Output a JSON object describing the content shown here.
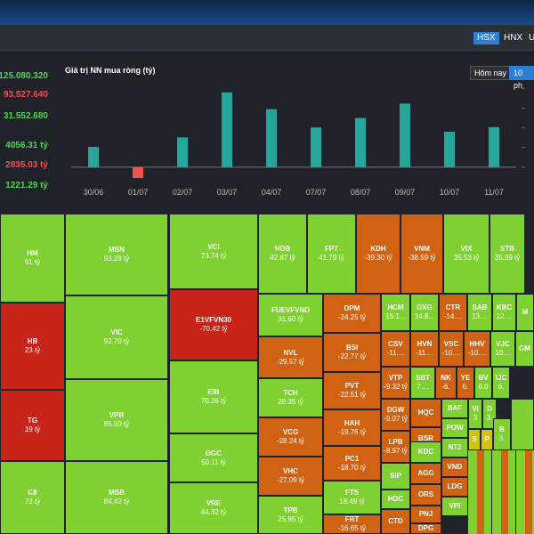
{
  "exchanges": {
    "hsx": "HSX",
    "hnx": "HNX",
    "upcom": "U"
  },
  "left_values": [
    {
      "text": "125.080.320",
      "color": "#4ed64e"
    },
    {
      "text": "93.527.640",
      "color": "#ff4747"
    },
    {
      "text": "31.552.680",
      "color": "#4ed64e"
    },
    {
      "text": "4056.31 tỷ",
      "color": "#4ed64e"
    },
    {
      "text": "2835.03 tỷ",
      "color": "#ff4747"
    },
    {
      "text": "1221.29 tỷ",
      "color": "#4ed64e"
    }
  ],
  "chart_title": "Giá trị NN mua ròng (tỷ)",
  "buttons": {
    "today": "Hôm nay",
    "tenmin": "10 ph"
  },
  "chart_data": {
    "type": "bar",
    "categories": [
      "30/06",
      "01/07",
      "02/07",
      "03/07",
      "04/07",
      "07/07",
      "08/07",
      "09/07",
      "10/07",
      "11/07"
    ],
    "values": [
      620,
      -330,
      910,
      2280,
      1770,
      1210,
      1500,
      1940,
      1080,
      1220
    ],
    "ylim": [
      -600,
      2600
    ],
    "colors": {
      "positive": "#26a69a",
      "negative": "#ef5350"
    }
  },
  "heatmap": [
    {
      "t": "HM",
      "v": "91 tỷ",
      "c": "g"
    },
    {
      "t": "MSN",
      "v": "93.28 tỷ",
      "c": "g"
    },
    {
      "t": "VCI",
      "v": "73.74 tỷ",
      "c": "g"
    },
    {
      "t": "HDB",
      "v": "42.87 tỷ",
      "c": "g"
    },
    {
      "t": "FPT",
      "v": "41.79 tỷ",
      "c": "g"
    },
    {
      "t": "KDH",
      "v": "-39.30 tỷ",
      "c": "o"
    },
    {
      "t": "VNM",
      "v": "-38.59 tỷ",
      "c": "o"
    },
    {
      "t": "VIX",
      "v": "35.53 tỷ",
      "c": "g"
    },
    {
      "t": "STB",
      "v": "35.09 tỷ",
      "c": "g"
    },
    {
      "t": "HB",
      "v": "23 tỷ",
      "c": "r"
    },
    {
      "t": "VIC",
      "v": "92.70 tỷ",
      "c": "g"
    },
    {
      "t": "E1VFVN30",
      "v": "-70.42 tỷ",
      "c": "r"
    },
    {
      "t": "FUEVFVND",
      "v": "31.60 tỷ",
      "c": "g"
    },
    {
      "t": "DPM",
      "v": "-24.25 tỷ",
      "c": "o"
    },
    {
      "t": "HCM",
      "v": "15.1...",
      "c": "g"
    },
    {
      "t": "DXG",
      "v": "14.8...",
      "c": "g"
    },
    {
      "t": "CTR",
      "v": "-14....",
      "c": "o"
    },
    {
      "t": "SAB",
      "v": "13....",
      "c": "g"
    },
    {
      "t": "KBC",
      "v": "12....",
      "c": "g"
    },
    {
      "t": "M",
      "v": "",
      "c": "g"
    },
    {
      "t": "NVL",
      "v": "-29.57 tỷ",
      "c": "o"
    },
    {
      "t": "BSI",
      "v": "-22.77 tỷ",
      "c": "o"
    },
    {
      "t": "CSV",
      "v": "-11....",
      "c": "o"
    },
    {
      "t": "HVN",
      "v": "-11....",
      "c": "o"
    },
    {
      "t": "VSC",
      "v": "-10....",
      "c": "o"
    },
    {
      "t": "HHV",
      "v": "-10....",
      "c": "o"
    },
    {
      "t": "VJC",
      "v": "10....",
      "c": "g"
    },
    {
      "t": "GM",
      "v": "",
      "c": "g"
    },
    {
      "t": "TG",
      "v": "19 tỷ",
      "c": "r"
    },
    {
      "t": "VPB",
      "v": "85.50 tỷ",
      "c": "g"
    },
    {
      "t": "EIB",
      "v": "70.26 tỷ",
      "c": "g"
    },
    {
      "t": "TCH",
      "v": "28.35 tỷ",
      "c": "g"
    },
    {
      "t": "PVT",
      "v": "-22.51 tỷ",
      "c": "o"
    },
    {
      "t": "VTP",
      "v": "-9.32 tỷ",
      "c": "o"
    },
    {
      "t": "SBT",
      "v": "7....",
      "c": "g"
    },
    {
      "t": "NK",
      "v": "-6.",
      "c": "o"
    },
    {
      "t": "YE",
      "v": "6.",
      "c": "o"
    },
    {
      "t": "BV",
      "v": "6.0",
      "c": "g"
    },
    {
      "t": "IJC",
      "v": "6.",
      "c": "g"
    },
    {
      "t": "VCG",
      "v": "-28.24 tỷ",
      "c": "o"
    },
    {
      "t": "HAH",
      "v": "-19.76 tỷ",
      "c": "o"
    },
    {
      "t": "DGW",
      "v": "-9.07 tỷ",
      "c": "o"
    },
    {
      "t": "HQC",
      "v": "",
      "c": "o"
    },
    {
      "t": "BAF",
      "v": "",
      "c": "g"
    },
    {
      "t": "VI",
      "v": "3",
      "c": "g"
    },
    {
      "t": "D",
      "v": "3.",
      "c": "g"
    },
    {
      "t": "C8",
      "v": "72 tỷ",
      "c": "g"
    },
    {
      "t": "MSB",
      "v": "84.42 tỷ",
      "c": "g"
    },
    {
      "t": "DGC",
      "v": "50.11 tỷ",
      "c": "g"
    },
    {
      "t": "VHC",
      "v": "-27.09 tỷ",
      "c": "o"
    },
    {
      "t": "PC1",
      "v": "-18.70 tỷ",
      "c": "o"
    },
    {
      "t": "LPB",
      "v": "-8.97 tỷ",
      "c": "o"
    },
    {
      "t": "BSR",
      "v": "",
      "c": "o"
    },
    {
      "t": "POW",
      "v": "",
      "c": "g"
    },
    {
      "t": "S",
      "v": "",
      "c": "y"
    },
    {
      "t": "P",
      "v": "",
      "c": "y"
    },
    {
      "t": "B",
      "v": "3.",
      "c": "g"
    },
    {
      "t": "BFC",
      "v": "-8.71 tỷ",
      "c": "o"
    },
    {
      "t": "KDC",
      "v": "",
      "c": "g"
    },
    {
      "t": "NT2",
      "v": "",
      "c": "g"
    },
    {
      "t": "AGG",
      "v": "",
      "c": "o"
    },
    {
      "t": "VND",
      "v": "",
      "c": "o"
    },
    {
      "t": "FTS",
      "v": "18.49 tỷ",
      "c": "g"
    },
    {
      "t": "SIP",
      "v": "",
      "c": "g"
    },
    {
      "t": "ORS",
      "v": "",
      "c": "o"
    },
    {
      "t": "LDG",
      "v": "",
      "c": "o"
    },
    {
      "t": "VPI",
      "v": "",
      "c": "g"
    },
    {
      "t": "VRE",
      "v": "44.32 tỷ",
      "c": "g"
    },
    {
      "t": "TPB",
      "v": "25.95 tỷ",
      "c": "g"
    },
    {
      "t": "HDC",
      "v": "",
      "c": "g"
    },
    {
      "t": "PNJ",
      "v": "",
      "c": "o"
    },
    {
      "t": "FRT",
      "v": "-16.65 tỷ",
      "c": "o"
    },
    {
      "t": "CTD",
      "v": "",
      "c": "o"
    },
    {
      "t": "DPG",
      "v": "",
      "c": "o"
    }
  ]
}
